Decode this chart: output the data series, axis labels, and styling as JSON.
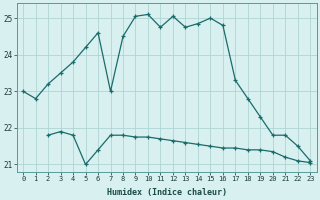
{
  "xlabel": "Humidex (Indice chaleur)",
  "x": [
    0,
    1,
    2,
    3,
    4,
    5,
    6,
    7,
    8,
    9,
    10,
    11,
    12,
    13,
    14,
    15,
    16,
    17,
    18,
    19,
    20,
    21,
    22,
    23
  ],
  "line1": [
    23.0,
    22.8,
    23.2,
    23.5,
    23.8,
    24.2,
    24.6,
    23.0,
    24.5,
    25.05,
    25.1,
    24.75,
    25.05,
    24.75,
    24.85,
    25.0,
    24.8,
    23.3,
    22.8,
    22.3,
    21.8,
    21.8,
    21.5,
    21.1
  ],
  "line2": [
    null,
    null,
    21.8,
    21.9,
    21.8,
    21.0,
    21.4,
    21.8,
    21.8,
    21.75,
    21.75,
    21.7,
    21.65,
    21.6,
    21.55,
    21.5,
    21.45,
    21.45,
    21.4,
    21.4,
    21.35,
    21.2,
    21.1,
    21.05
  ],
  "line_color": "#1a6b6b",
  "bg_color": "#d9f0f0",
  "grid_color": "#aed4d4",
  "ylim": [
    20.8,
    25.4
  ],
  "yticks": [
    21,
    22,
    23,
    24,
    25
  ],
  "xlim": [
    -0.5,
    23.5
  ]
}
